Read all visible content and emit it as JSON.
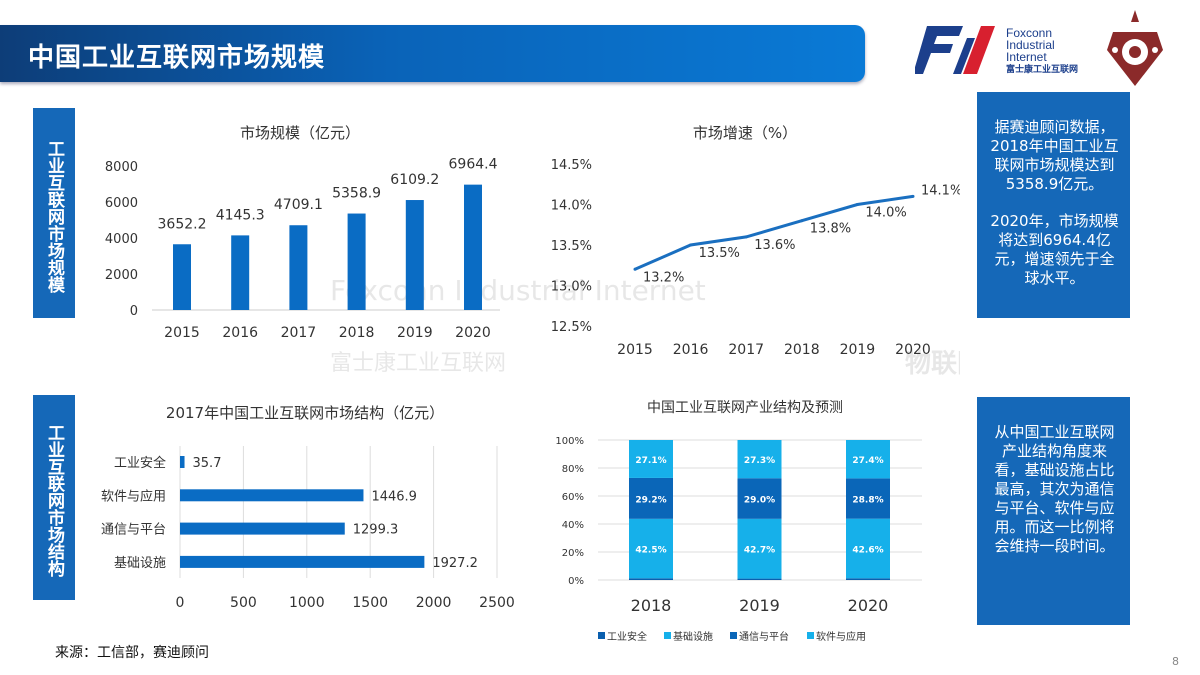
{
  "header": {
    "title": "中国工业互联网市场规模"
  },
  "logo": {
    "brand_en_1": "Foxconn",
    "brand_en_2": "Industrial",
    "brand_en_3": "Internet",
    "brand_cn": "富士康工业互联网",
    "colors": [
      "#1c3f8c",
      "#d8202f"
    ]
  },
  "side_labels": [
    "工业互联网市场规模",
    "工业互联网市场结构"
  ],
  "notes": [
    {
      "paragraphs": [
        "据赛迪顾问数据，2018年中国工业互联网市场规模达到5358.9亿元。",
        "2020年，市场规模将达到6964.4亿元，增速领先于全球水平。"
      ]
    },
    {
      "paragraphs": [
        "从中国工业互联网产业结构角度来看，基础设施占比最高，其次为通信与平台、软件与应用。而这一比例将会维持一段时间。"
      ]
    }
  ],
  "source": "来源：工信部，赛迪顾问",
  "page_number": "8",
  "watermark": {
    "text1": "Foxconn Industrial Internet",
    "text2": "富士康工业互联网",
    "text3": "物联网 I 库"
  },
  "chart_data": [
    {
      "type": "bar",
      "title": "市场规模（亿元）",
      "categories": [
        "2015",
        "2016",
        "2017",
        "2018",
        "2019",
        "2020"
      ],
      "values": [
        3652.2,
        4145.3,
        4709.1,
        5358.9,
        6109.2,
        6964.4
      ],
      "ylim": [
        0,
        8000
      ],
      "yticks": [
        "0",
        "2000",
        "4000",
        "6000",
        "8000"
      ],
      "color": "#0a6cc4"
    },
    {
      "type": "line",
      "title": "市场增速（%）",
      "categories": [
        "2015",
        "2016",
        "2017",
        "2018",
        "2019",
        "2020"
      ],
      "values": [
        13.2,
        13.5,
        13.6,
        13.8,
        14.0,
        14.1
      ],
      "labels": [
        "13.2%",
        "13.5%",
        "13.6%",
        "13.8%",
        "14.0%",
        "14.1%"
      ],
      "ylim": [
        12.5,
        14.5
      ],
      "yticks": [
        "12.5%",
        "13.0%",
        "13.5%",
        "14.0%",
        "14.5%"
      ],
      "color": "#1a6fc0"
    },
    {
      "type": "bar",
      "orientation": "horizontal",
      "title": "2017年中国工业互联网市场结构（亿元）",
      "categories": [
        "工业安全",
        "软件与应用",
        "通信与平台",
        "基础设施"
      ],
      "values": [
        35.7,
        1446.9,
        1299.3,
        1927.2
      ],
      "xlim": [
        0,
        2500
      ],
      "xticks": [
        "0",
        "500",
        "1000",
        "1500",
        "2000",
        "2500"
      ],
      "color": "#0a6cc4"
    },
    {
      "type": "bar",
      "stacked": true,
      "title": "中国工业互联网产业结构及预测",
      "categories": [
        "2018",
        "2019",
        "2020"
      ],
      "yticks": [
        "0%",
        "20%",
        "40%",
        "60%",
        "80%",
        "100%"
      ],
      "ylim": [
        0,
        100
      ],
      "legend_position": "bottom",
      "series": [
        {
          "name": "工业安全",
          "values": [
            1.2,
            1.0,
            1.2
          ],
          "labels": [
            "",
            "",
            ""
          ],
          "color": "#0a5fae"
        },
        {
          "name": "基础设施",
          "values": [
            42.5,
            42.7,
            42.6
          ],
          "labels": [
            "42.5%",
            "42.7%",
            "42.6%"
          ],
          "color": "#16b0ea"
        },
        {
          "name": "通信与平台",
          "values": [
            29.2,
            29.0,
            28.8
          ],
          "labels": [
            "29.2%",
            "29.0%",
            "28.8%"
          ],
          "color": "#0a66b8"
        },
        {
          "name": "软件与应用",
          "values": [
            27.1,
            27.3,
            27.4
          ],
          "labels": [
            "27.1%",
            "27.3%",
            "27.4%"
          ],
          "color": "#16b0ea"
        }
      ]
    }
  ]
}
